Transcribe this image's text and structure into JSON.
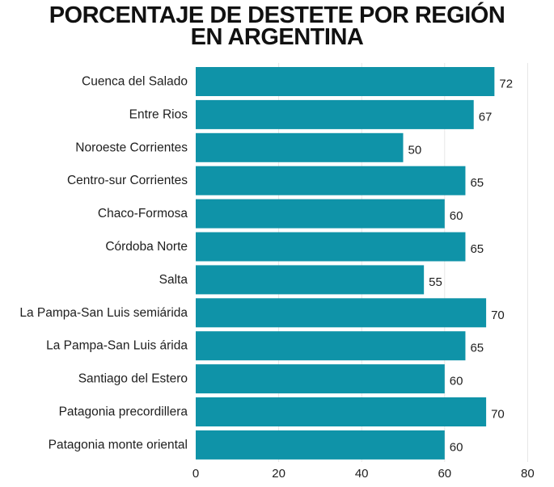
{
  "chart_data": {
    "type": "bar",
    "orientation": "horizontal",
    "title_lines": [
      "PORCENTAJE DE DESTETE POR REGIÓN",
      "EN ARGENTINA"
    ],
    "categories": [
      "Cuenca del Salado",
      "Entre Rios",
      "Noroeste Corrientes",
      "Centro-sur Corrientes",
      "Chaco-Formosa",
      "Córdoba Norte",
      "Salta",
      "La Pampa-San Luis semiárida",
      "La Pampa-San Luis árida",
      "Santiago del Estero",
      "Patagonia precordillera",
      "Patagonia monte oriental"
    ],
    "values": [
      72,
      67,
      50,
      65,
      60,
      65,
      55,
      70,
      65,
      60,
      70,
      60
    ],
    "xlim": [
      0,
      80
    ],
    "xticks": [
      0,
      20,
      40,
      60,
      80
    ],
    "grid": true,
    "bar_color": "#0f93a8"
  }
}
